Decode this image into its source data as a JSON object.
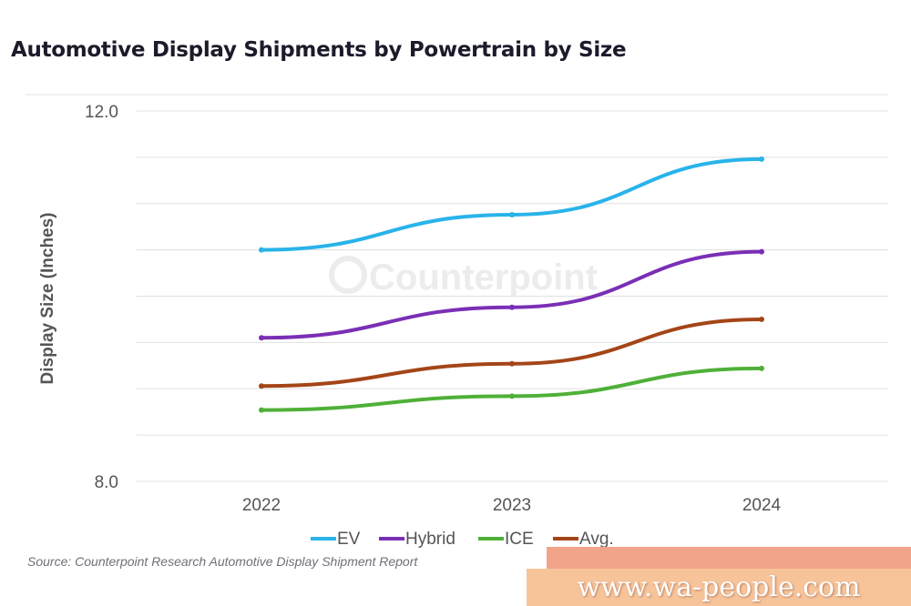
{
  "title": "Automotive Display Shipments by Powertrain by Size",
  "source": "Source: Counterpoint Research Automotive Display Shipment Report",
  "watermark": "Counterpoint",
  "banner": "www.wa-people.com",
  "chart_data": {
    "type": "line",
    "title": "Automotive Display Shipments by Powertrain by Size",
    "ylabel": "Display Size (Inches)",
    "xlabel": "",
    "categories": [
      "2022",
      "2023",
      "2024"
    ],
    "ylim": [
      8.0,
      12.0
    ],
    "ytick_labels": [
      "12.0",
      "8.0"
    ],
    "grid": true,
    "legend_position": "bottom",
    "series": [
      {
        "name": "EV",
        "color": "#29b3ea",
        "values": [
          10.5,
          10.88,
          11.48
        ]
      },
      {
        "name": "Hybrid",
        "color": "#7a2fb5",
        "values": [
          9.55,
          9.88,
          10.48
        ]
      },
      {
        "name": "ICE",
        "color": "#4fb038",
        "values": [
          8.77,
          8.92,
          9.22
        ]
      },
      {
        "name": "Avg.",
        "color": "#a44518",
        "values": [
          9.03,
          9.27,
          9.75
        ]
      }
    ]
  }
}
